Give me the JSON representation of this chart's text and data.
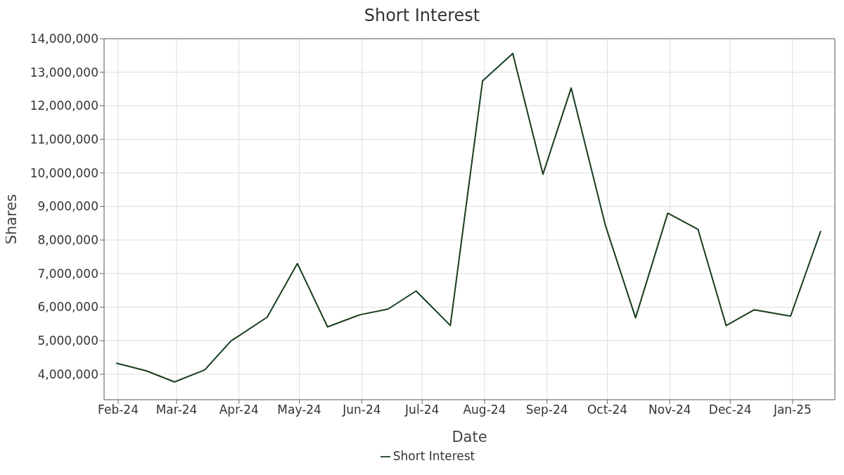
{
  "chart_data": {
    "type": "line",
    "title": "Short Interest",
    "xlabel": "Date",
    "ylabel": "Shares",
    "x": [
      "2024-01-31",
      "2024-02-15",
      "2024-02-29",
      "2024-03-15",
      "2024-03-28",
      "2024-04-15",
      "2024-04-30",
      "2024-05-15",
      "2024-05-31",
      "2024-06-14",
      "2024-06-28",
      "2024-07-15",
      "2024-07-31",
      "2024-08-15",
      "2024-08-30",
      "2024-09-13",
      "2024-09-30",
      "2024-10-15",
      "2024-10-31",
      "2024-11-15",
      "2024-11-29",
      "2024-12-13",
      "2024-12-31",
      "2025-01-15"
    ],
    "series": [
      {
        "name": "Short Interest",
        "color": "#173d1e",
        "values": [
          4330000,
          4100000,
          3770000,
          4130000,
          4990000,
          5700000,
          7300000,
          5410000,
          5770000,
          5940000,
          6480000,
          5450000,
          12740000,
          13560000,
          9960000,
          12530000,
          8440000,
          5680000,
          8800000,
          8320000,
          5450000,
          5920000,
          5730000,
          8270000
        ]
      }
    ],
    "xlim": [
      "2024-01-25",
      "2025-01-22"
    ],
    "xticks": [
      {
        "value": "2024-02-01",
        "label": "Feb-24"
      },
      {
        "value": "2024-03-01",
        "label": "Mar-24"
      },
      {
        "value": "2024-04-01",
        "label": "Apr-24"
      },
      {
        "value": "2024-05-01",
        "label": "May-24"
      },
      {
        "value": "2024-06-01",
        "label": "Jun-24"
      },
      {
        "value": "2024-07-01",
        "label": "Jul-24"
      },
      {
        "value": "2024-08-01",
        "label": "Aug-24"
      },
      {
        "value": "2024-09-01",
        "label": "Sep-24"
      },
      {
        "value": "2024-10-01",
        "label": "Oct-24"
      },
      {
        "value": "2024-11-01",
        "label": "Nov-24"
      },
      {
        "value": "2024-12-01",
        "label": "Dec-24"
      },
      {
        "value": "2025-01-01",
        "label": "Jan-25"
      }
    ],
    "ylim": [
      3240000,
      14000000
    ],
    "yticks": [
      {
        "value": 4000000,
        "label": "4,000,000"
      },
      {
        "value": 5000000,
        "label": "5,000,000"
      },
      {
        "value": 6000000,
        "label": "6,000,000"
      },
      {
        "value": 7000000,
        "label": "7,000,000"
      },
      {
        "value": 8000000,
        "label": "8,000,000"
      },
      {
        "value": 9000000,
        "label": "9,000,000"
      },
      {
        "value": 10000000,
        "label": "10,000,000"
      },
      {
        "value": 11000000,
        "label": "11,000,000"
      },
      {
        "value": 12000000,
        "label": "12,000,000"
      },
      {
        "value": 13000000,
        "label": "13,000,000"
      },
      {
        "value": 14000000,
        "label": "14,000,000"
      }
    ],
    "grid": true,
    "legend": "bottom",
    "marker": "none",
    "line_style": "solid"
  }
}
